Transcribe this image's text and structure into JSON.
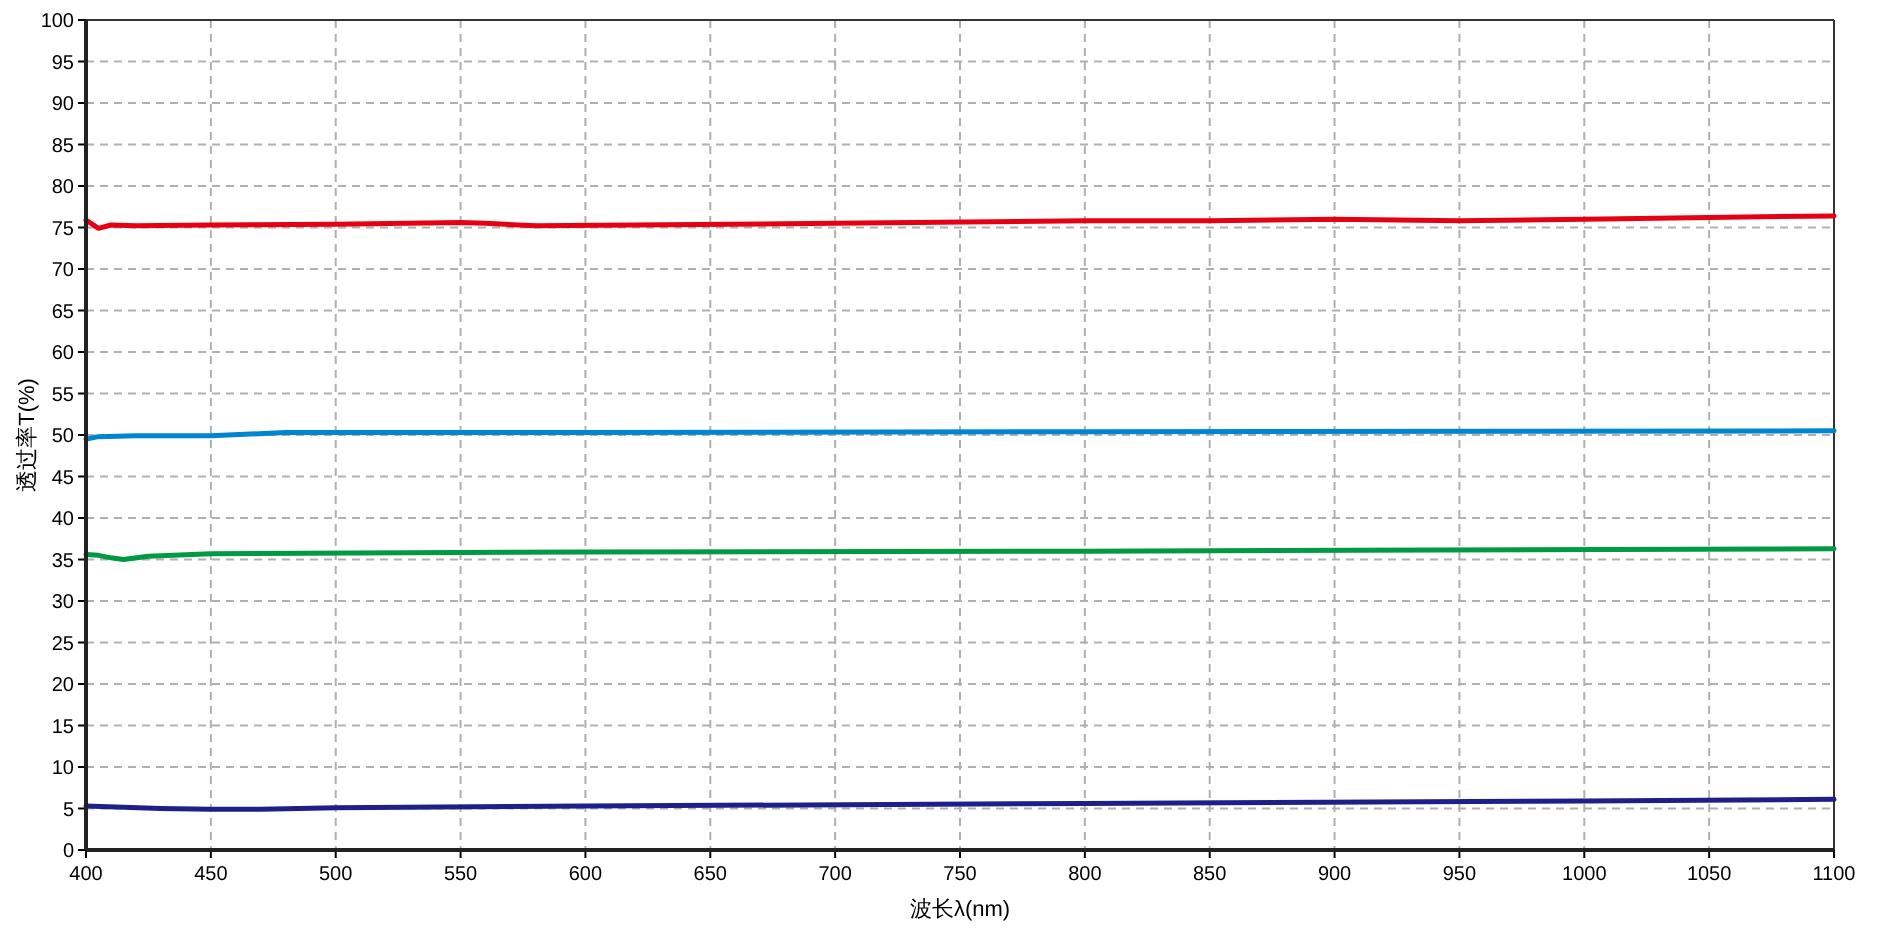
{
  "chart_data": {
    "type": "line",
    "xlabel": "波长λ(nm)",
    "ylabel": "透过率T(%)",
    "xlim": [
      400,
      1100
    ],
    "xticks": [
      400,
      450,
      500,
      550,
      600,
      650,
      700,
      750,
      800,
      850,
      900,
      950,
      1000,
      1050,
      1100
    ],
    "ylim": [
      0,
      100
    ],
    "yticks": [
      0,
      5,
      10,
      15,
      20,
      25,
      30,
      35,
      40,
      45,
      50,
      55,
      60,
      65,
      70,
      75,
      80,
      85,
      90,
      95,
      100
    ],
    "grid": true,
    "marker": "none",
    "line_style": "solid",
    "series": [
      {
        "color": "#e60012",
        "x": [
          400,
          405,
          410,
          420,
          450,
          500,
          550,
          560,
          580,
          700,
          800,
          850,
          900,
          950,
          1000,
          1100
        ],
        "values": [
          75.9,
          74.9,
          75.3,
          75.2,
          75.3,
          75.4,
          75.6,
          75.5,
          75.2,
          75.5,
          75.8,
          75.8,
          76.0,
          75.8,
          76.0,
          76.4
        ]
      },
      {
        "color": "#0085d0",
        "x": [
          400,
          405,
          420,
          450,
          480,
          600,
          800,
          1100
        ],
        "values": [
          49.5,
          49.8,
          49.9,
          49.9,
          50.3,
          50.3,
          50.4,
          50.5
        ]
      },
      {
        "color": "#009944",
        "x": [
          400,
          405,
          410,
          415,
          425,
          450,
          600,
          800,
          1100
        ],
        "values": [
          35.6,
          35.5,
          35.2,
          35.0,
          35.4,
          35.7,
          35.9,
          36.0,
          36.3
        ]
      },
      {
        "color": "#1d2088",
        "x": [
          400,
          430,
          450,
          470,
          500,
          600,
          800,
          1000,
          1100
        ],
        "values": [
          5.3,
          5.0,
          4.9,
          4.9,
          5.1,
          5.3,
          5.6,
          5.9,
          6.1
        ]
      }
    ]
  }
}
